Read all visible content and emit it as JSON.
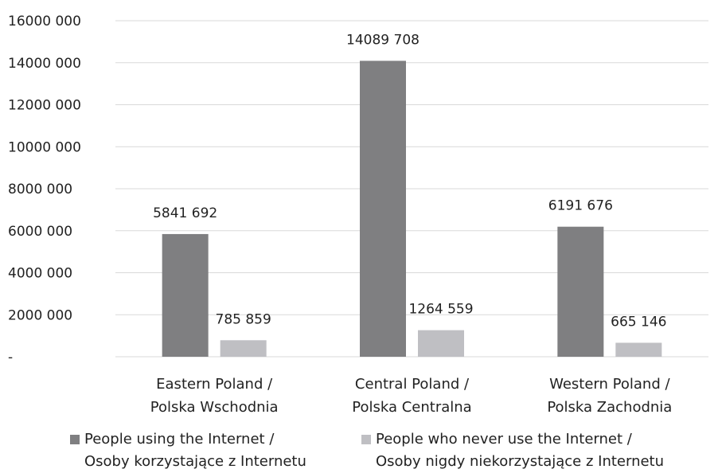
{
  "chart_data": {
    "type": "bar",
    "categories": [
      [
        "Eastern Poland /",
        "Polska Wschodnia"
      ],
      [
        "Central Poland /",
        "Polska Centralna"
      ],
      [
        "Western Poland /",
        "Polska Zachodnia"
      ]
    ],
    "series": [
      {
        "name": "People using the Internet /\nOsoby korzystające z Internetu",
        "color": "#7f7f81",
        "values": [
          5841692,
          14089708,
          6191676
        ],
        "labels": [
          "5841 692",
          "14089 708",
          "6191 676"
        ]
      },
      {
        "name": "People who never use the Internet /\nOsoby nigdy niekorzystające z Internetu",
        "color": "#bfbfc3",
        "values": [
          785859,
          1264559,
          665146
        ],
        "labels": [
          "785 859",
          "1264 559",
          "665 146"
        ]
      }
    ],
    "ylim": [
      0,
      16000000
    ],
    "yticks": [
      0,
      2000000,
      4000000,
      6000000,
      8000000,
      10000000,
      12000000,
      14000000,
      16000000
    ],
    "ytick_labels": [
      "-",
      "2000 000",
      "4000 000",
      "6000 000",
      "8000 000",
      "10000 000",
      "12000 000",
      "14000 000",
      "16000 000"
    ],
    "grid": true,
    "gridline_color": "#d9d9d9",
    "legend_position": "bottom",
    "title": "",
    "xlabel": "",
    "ylabel": ""
  }
}
